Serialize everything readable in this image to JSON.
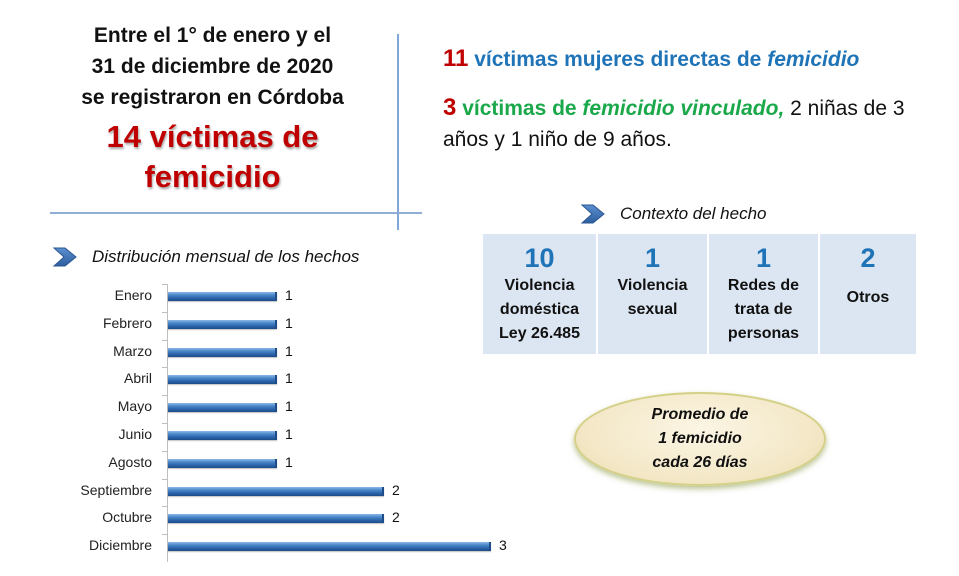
{
  "headline": {
    "lines": [
      "Entre el 1° de enero y el",
      "31 de diciembre de 2020",
      "se registraron en Córdoba"
    ],
    "big_line1": "14 víctimas de",
    "big_line2": "femicidio"
  },
  "statement1": {
    "number": "11",
    "text": " víctimas mujeres directas de ",
    "italic": "femicidio"
  },
  "statement2": {
    "number": "3",
    "text_green": " víctimas de ",
    "italic_green": "femicidio vinculado,",
    "text_rest": " 2 niñas de 3 años y 1 niño de 9 años."
  },
  "context": {
    "title": "Contexto del hecho",
    "cells": [
      {
        "number": "10",
        "label_lines": [
          "Violencia",
          "doméstica",
          "Ley 26.485"
        ]
      },
      {
        "number": "1",
        "label_lines": [
          "Violencia",
          "sexual"
        ]
      },
      {
        "number": "1",
        "label_lines": [
          "Redes de",
          "trata de",
          "personas"
        ]
      },
      {
        "number": "2",
        "label_lines": [
          "Otros"
        ]
      }
    ]
  },
  "average": {
    "lines": [
      "Promedio de",
      "1 femicidio",
      "cada 26 días"
    ]
  },
  "distribution": {
    "title": "Distribución mensual de los hechos"
  },
  "colors": {
    "accent_red": "#c00000",
    "accent_blue": "#1f73b7",
    "accent_green": "#1aa84a",
    "table_bg": "#dce6f2",
    "bar_blue": "#2a62a8"
  },
  "chart_data": {
    "type": "bar",
    "orientation": "horizontal",
    "title": "Distribución mensual de los hechos",
    "categories": [
      "Enero",
      "Febrero",
      "Marzo",
      "Abril",
      "Mayo",
      "Junio",
      "Agosto",
      "Septiembre",
      "Octubre",
      "Diciembre"
    ],
    "values": [
      1,
      1,
      1,
      1,
      1,
      1,
      1,
      2,
      2,
      3
    ],
    "data_labels": [
      "1",
      "1",
      "1",
      "1",
      "1",
      "1",
      "1",
      "2",
      "2",
      "3"
    ],
    "xlabel": "",
    "ylabel": "",
    "xlim": [
      0,
      3
    ],
    "grid": false,
    "legend": "none"
  }
}
